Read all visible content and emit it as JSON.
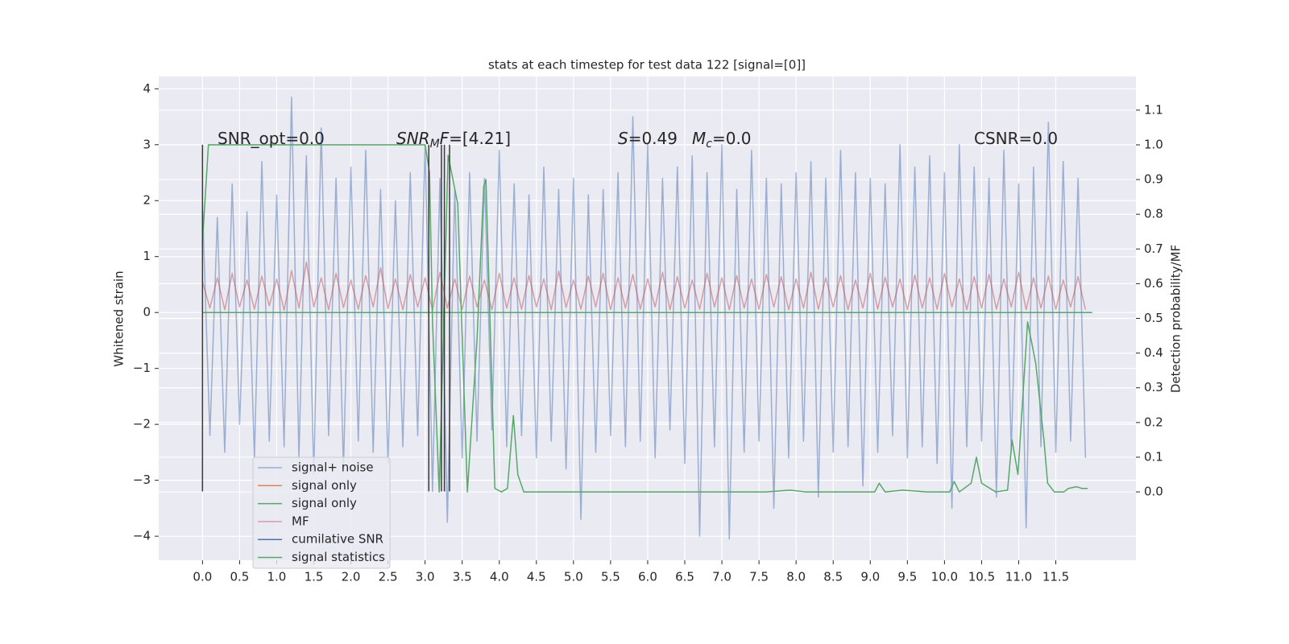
{
  "chart_data": {
    "type": "line",
    "title": "stats at each timestep for test data 122 [signal=[0]]",
    "ylabel": "Whitened strain",
    "y2label": "Detection probability/MF",
    "grid": true,
    "legend": "lower left",
    "xlim": [
      -0.59,
      12.58
    ],
    "ylim": [
      -4.43,
      4.22
    ],
    "y2lim": [
      -0.197,
      1.197
    ],
    "xticks": [
      {
        "value": 0,
        "label": "0.0"
      },
      0.5,
      {
        "value": 1,
        "label": "1.0"
      },
      1.5,
      {
        "value": 2,
        "label": "2.0"
      },
      2.5,
      {
        "value": 3,
        "label": "3.0"
      },
      3.5,
      {
        "value": 4,
        "label": "4.0"
      },
      4.5,
      {
        "value": 5,
        "label": "5.0"
      },
      5.5,
      {
        "value": 6,
        "label": "6.0"
      },
      6.5,
      {
        "value": 7,
        "label": "7.0"
      },
      7.5,
      {
        "value": 8,
        "label": "8.0"
      },
      8.5,
      {
        "value": 9,
        "label": "9.0"
      },
      9.5,
      {
        "value": 10,
        "label": "10.0"
      },
      10.5,
      {
        "value": 11,
        "label": "11.0"
      },
      11.5
    ],
    "yticks": [
      {
        "value": -4,
        "label": "−4"
      },
      {
        "value": -3,
        "label": "−3"
      },
      {
        "value": -2,
        "label": "−2"
      },
      {
        "value": -1,
        "label": "−1"
      },
      0,
      1,
      2,
      3,
      4
    ],
    "y2ticks": [
      {
        "value": 0,
        "label": "0.0"
      },
      0.1,
      0.2,
      0.3,
      0.4,
      0.5,
      0.6,
      0.7,
      0.8,
      0.9,
      {
        "value": 1,
        "label": "1.0"
      },
      1.1
    ],
    "annotations": [
      [
        {
          "text": "SNR_opt=0.0"
        }
      ],
      [
        {
          "text": "SNR",
          "italic": true
        },
        {
          "text": "M",
          "italic": true,
          "sub": true
        },
        {
          "text": "F",
          "italic": true
        },
        {
          "text": "=[4.21]"
        }
      ],
      [
        {
          "text": "S",
          "italic": true
        },
        {
          "text": "=0.49"
        }
      ],
      [
        {
          "text": "M",
          "italic": true
        },
        {
          "text": "c",
          "italic": true,
          "sub": true
        },
        {
          "text": "=0.0"
        }
      ],
      [
        {
          "text": "CSNR=0.0"
        }
      ]
    ],
    "vlines": {
      "x": [
        0,
        3.05,
        3.22,
        3.26,
        3.33
      ],
      "ymin": -3.2,
      "ymax": 3.0,
      "color": "#3a3a3a"
    },
    "x": [
      0,
      0.1,
      0.2,
      0.3,
      0.4,
      0.5,
      0.6,
      0.7,
      0.8,
      0.9,
      1,
      1.1,
      1.2,
      1.3,
      1.4,
      1.5,
      1.6,
      1.7,
      1.8,
      1.9,
      2,
      2.1,
      2.2,
      2.3,
      2.4,
      2.5,
      2.6,
      2.7,
      2.8,
      2.9,
      3,
      3.1,
      3.2,
      3.3,
      3.4,
      3.5,
      3.6,
      3.7,
      3.8,
      3.9,
      4,
      4.1,
      4.2,
      4.3,
      4.4,
      4.5,
      4.6,
      4.7,
      4.8,
      4.9,
      5,
      5.1,
      5.2,
      5.3,
      5.4,
      5.5,
      5.6,
      5.7,
      5.8,
      5.9,
      6,
      6.1,
      6.2,
      6.3,
      6.4,
      6.5,
      6.6,
      6.7,
      6.8,
      6.9,
      7,
      7.1,
      7.2,
      7.3,
      7.4,
      7.5,
      7.6,
      7.7,
      7.8,
      7.9,
      8,
      8.1,
      8.2,
      8.3,
      8.4,
      8.5,
      8.6,
      8.7,
      8.8,
      8.9,
      9,
      9.1,
      9.2,
      9.3,
      9.4,
      9.5,
      9.6,
      9.7,
      9.8,
      9.9,
      10,
      10.1,
      10.2,
      10.3,
      10.4,
      10.5,
      10.6,
      10.7,
      10.8,
      10.9,
      11,
      11.1,
      11.2,
      11.3,
      11.4,
      11.5,
      11.6,
      11.7,
      11.8,
      11.9
    ],
    "series": [
      {
        "name": "signal+ noise",
        "color": "#4c72b0",
        "opacity": 0.5,
        "values": [
          1.9,
          -2.2,
          1.7,
          -2.5,
          2.3,
          -2.0,
          1.8,
          -2.6,
          2.7,
          -2.3,
          2.1,
          -2.4,
          3.85,
          -2.6,
          2.8,
          -2.9,
          3.3,
          -2.2,
          2.4,
          -2.8,
          2.6,
          -2.3,
          2.9,
          -2.5,
          2.2,
          -2.7,
          2.0,
          -2.4,
          2.5,
          -2.2,
          3.0,
          -3.2,
          2.4,
          -3.75,
          2.2,
          -2.6,
          2.5,
          -2.3,
          2.4,
          -2.1,
          2.9,
          -2.4,
          2.3,
          -2.2,
          2.1,
          -2.6,
          2.6,
          -2.3,
          2.2,
          -2.8,
          2.4,
          -3.7,
          2.1,
          -2.5,
          2.2,
          -2.2,
          2.5,
          -2.4,
          3.5,
          -2.3,
          3.0,
          -2.6,
          2.4,
          -2.1,
          2.6,
          -2.7,
          2.8,
          -4.0,
          2.5,
          -2.4,
          3.0,
          -4.05,
          2.2,
          -2.5,
          2.9,
          -2.3,
          2.4,
          -3.5,
          2.3,
          -2.6,
          2.5,
          -2.3,
          2.7,
          -3.3,
          2.4,
          -2.5,
          2.9,
          -2.4,
          2.5,
          -3.1,
          2.4,
          -2.5,
          2.3,
          -2.2,
          3.0,
          -2.6,
          2.6,
          -2.4,
          2.8,
          -2.7,
          2.5,
          -3.5,
          3.0,
          -2.4,
          2.6,
          -2.3,
          2.4,
          -3.3,
          2.9,
          -2.5,
          2.3,
          -3.85,
          2.6,
          -2.4,
          3.4,
          -2.5,
          2.7,
          -2.3,
          2.4,
          -2.6
        ]
      },
      {
        "name": "signal only",
        "color": "#dd8452",
        "x": [
          0,
          11.99
        ],
        "values": [
          0,
          0
        ]
      },
      {
        "name": "signal only",
        "color": "#55a868",
        "x": [
          0,
          11.99
        ],
        "values": [
          0,
          0
        ]
      },
      {
        "name": "MF",
        "color": "#c44e52",
        "opacity": 0.5,
        "values": [
          0.55,
          0.08,
          0.62,
          0.05,
          0.7,
          0.1,
          0.58,
          0.06,
          0.65,
          0.12,
          0.6,
          0.04,
          0.75,
          0.08,
          0.9,
          0.1,
          0.62,
          0.05,
          0.7,
          0.09,
          0.58,
          0.06,
          0.66,
          0.1,
          0.8,
          0.07,
          0.6,
          0.05,
          0.68,
          0.1,
          0.62,
          0.04,
          0.72,
          0.08,
          0.6,
          0.06,
          0.65,
          0.1,
          0.58,
          0.05,
          0.7,
          0.08,
          0.62,
          0.06,
          0.66,
          0.1,
          0.6,
          0.05,
          0.74,
          0.09,
          0.58,
          0.06,
          0.65,
          0.1,
          0.7,
          0.05,
          0.62,
          0.08,
          0.68,
          0.06,
          0.6,
          0.1,
          0.72,
          0.05,
          0.64,
          0.08,
          0.58,
          0.06,
          0.7,
          0.1,
          0.62,
          0.05,
          0.66,
          0.08,
          0.6,
          0.06,
          0.68,
          0.1,
          0.64,
          0.05,
          0.6,
          0.08,
          0.72,
          0.06,
          0.62,
          0.1,
          0.66,
          0.05,
          0.58,
          0.08,
          0.7,
          0.06,
          0.63,
          0.1,
          0.6,
          0.05,
          0.67,
          0.08,
          0.62,
          0.06,
          0.7,
          0.1,
          0.6,
          0.05,
          0.64,
          0.08,
          0.68,
          0.06,
          0.6,
          0.1,
          0.72,
          0.05,
          0.62,
          0.08,
          0.65,
          0.06,
          0.58,
          0.1,
          0.64,
          0.05
        ]
      },
      {
        "name": "cumilative SNR",
        "color": "#4c72b0"
      },
      {
        "name": "signal statistics",
        "color": "#55a868",
        "axis": "y2",
        "x": [
          0,
          0.08,
          3.0,
          3.06,
          3.1,
          3.19,
          3.31,
          3.44,
          3.57,
          3.7,
          3.79,
          3.82,
          3.94,
          4.03,
          4.11,
          4.19,
          4.25,
          4.33,
          4.5,
          4.6,
          7.59,
          7.92,
          8.13,
          9.06,
          9.12,
          9.2,
          9.44,
          9.76,
          10.07,
          10.13,
          10.2,
          10.36,
          10.43,
          10.5,
          10.69,
          10.85,
          10.91,
          10.99,
          11.12,
          11.23,
          11.34,
          11.39,
          11.48,
          11.61,
          11.67,
          11.78,
          11.85,
          11.93
        ],
        "values": [
          0.72,
          1.0,
          1.0,
          0.92,
          0.49,
          0.0,
          0.97,
          0.83,
          0.0,
          0.44,
          0.88,
          0.9,
          0.01,
          0.0,
          0.01,
          0.22,
          0.05,
          0.0,
          0.0,
          0.0,
          0,
          0.005,
          0,
          0,
          0.025,
          0,
          0.005,
          0,
          0,
          0.03,
          0,
          0.025,
          0.1,
          0.025,
          0.0,
          0.005,
          0.15,
          0.05,
          0.49,
          0.37,
          0.15,
          0.025,
          0,
          0,
          0.01,
          0.015,
          0.01,
          0.01
        ]
      }
    ]
  }
}
